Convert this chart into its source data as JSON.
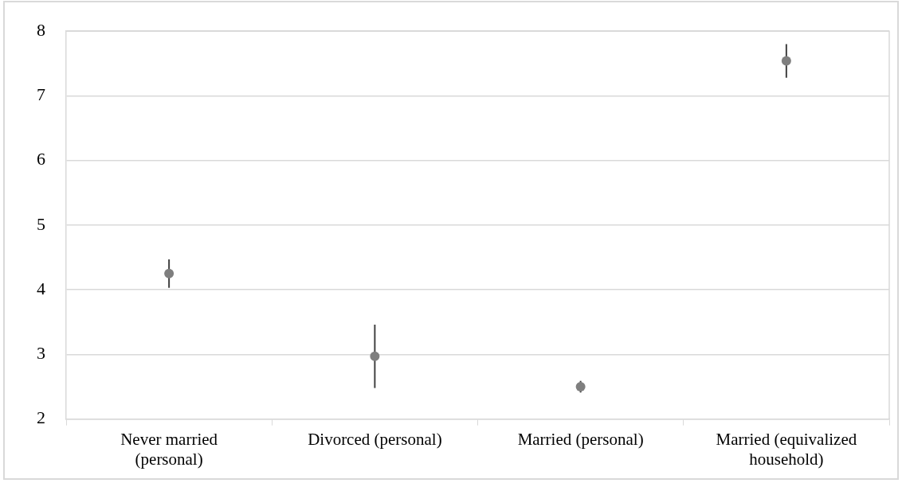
{
  "chart_data": {
    "type": "scatter",
    "categories": [
      "Never married (personal)",
      "Divorced (personal)",
      "Married (personal)",
      "Married (equivalized household)"
    ],
    "values": [
      4.25,
      2.97,
      2.5,
      7.54
    ],
    "errors": [
      0.22,
      0.49,
      0.09,
      0.26
    ],
    "color": "#7f7f7f",
    "marker": "circle",
    "ylim": [
      2,
      8
    ],
    "yticks": [
      2,
      3,
      4,
      5,
      6,
      7,
      8
    ],
    "grid": "y",
    "legend": false
  }
}
